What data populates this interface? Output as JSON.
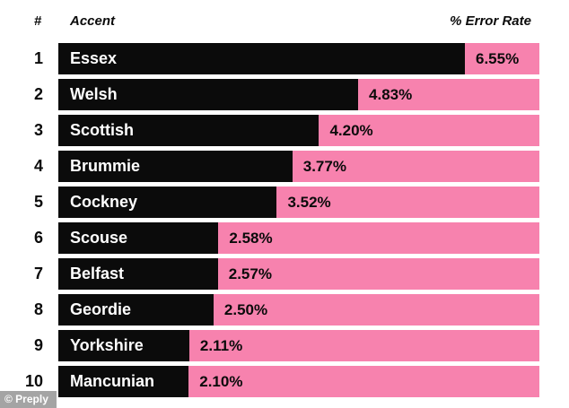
{
  "colors": {
    "pink": "#F782AE",
    "bar_black": "#0b0b0b",
    "background": "#ffffff",
    "header_text": "#0b0b0b",
    "bar_label_text": "#ffffff"
  },
  "header": {
    "rank_label": "#",
    "accent_label": "Accent",
    "rate_label": "% Error Rate"
  },
  "rows": [
    {
      "rank": "1",
      "accent": "Essex",
      "value": 6.55,
      "value_label": "6.55%"
    },
    {
      "rank": "2",
      "accent": "Welsh",
      "value": 4.83,
      "value_label": "4.83%"
    },
    {
      "rank": "3",
      "accent": "Scottish",
      "value": 4.2,
      "value_label": "4.20%"
    },
    {
      "rank": "4",
      "accent": "Brummie",
      "value": 3.77,
      "value_label": "3.77%"
    },
    {
      "rank": "5",
      "accent": "Cockney",
      "value": 3.52,
      "value_label": "3.52%"
    },
    {
      "rank": "6",
      "accent": "Scouse",
      "value": 2.58,
      "value_label": "2.58%"
    },
    {
      "rank": "7",
      "accent": "Belfast",
      "value": 2.57,
      "value_label": "2.57%"
    },
    {
      "rank": "8",
      "accent": "Geordie",
      "value": 2.5,
      "value_label": "2.50%"
    },
    {
      "rank": "9",
      "accent": "Yorkshire",
      "value": 2.11,
      "value_label": "2.11%"
    },
    {
      "rank": "10",
      "accent": "Mancunian",
      "value": 2.1,
      "value_label": "2.10%"
    }
  ],
  "chart_data": {
    "type": "bar",
    "orientation": "horizontal",
    "categories": [
      "Essex",
      "Welsh",
      "Scottish",
      "Brummie",
      "Cockney",
      "Scouse",
      "Belfast",
      "Geordie",
      "Yorkshire",
      "Mancunian"
    ],
    "values": [
      6.55,
      4.83,
      4.2,
      3.77,
      3.52,
      2.58,
      2.57,
      2.5,
      2.11,
      2.1
    ],
    "value_labels": [
      "6.55%",
      "4.83%",
      "4.20%",
      "3.77%",
      "3.52%",
      "2.58%",
      "2.57%",
      "2.50%",
      "2.11%",
      "2.10%"
    ],
    "ranks": [
      1,
      2,
      3,
      4,
      5,
      6,
      7,
      8,
      9,
      10
    ],
    "title": "",
    "xlabel": "% Error Rate",
    "ylabel": "Accent",
    "xlim": [
      0,
      7.75
    ],
    "grid": false,
    "legend": false
  },
  "watermark": {
    "credit": "© Preply"
  }
}
